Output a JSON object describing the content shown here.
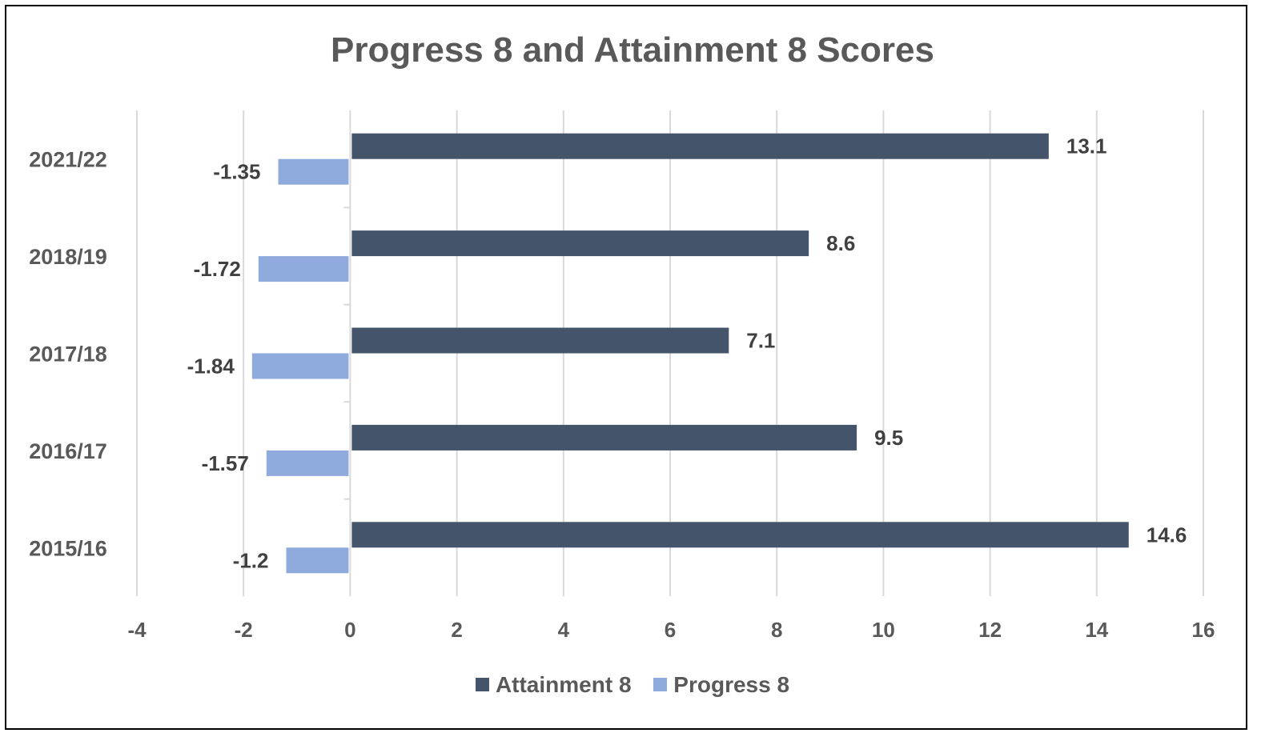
{
  "chart_data": {
    "type": "bar",
    "orientation": "horizontal",
    "title": "Progress 8 and Attainment 8 Scores",
    "xlabel": "",
    "ylabel": "",
    "xlim": [
      -4,
      16
    ],
    "x_ticks": [
      -4,
      -2,
      0,
      2,
      4,
      6,
      8,
      10,
      12,
      14,
      16
    ],
    "grid": "vertical",
    "legend_position": "bottom",
    "categories": [
      "2021/22",
      "2018/19",
      "2017/18",
      "2016/17",
      "2015/16"
    ],
    "series": [
      {
        "name": "Attainment 8",
        "color": "#44546A",
        "values": [
          13.1,
          8.6,
          7.1,
          9.5,
          14.6
        ]
      },
      {
        "name": "Progress 8",
        "color": "#8FAADC",
        "values": [
          -1.35,
          -1.72,
          -1.84,
          -1.57,
          -1.2
        ]
      }
    ]
  }
}
